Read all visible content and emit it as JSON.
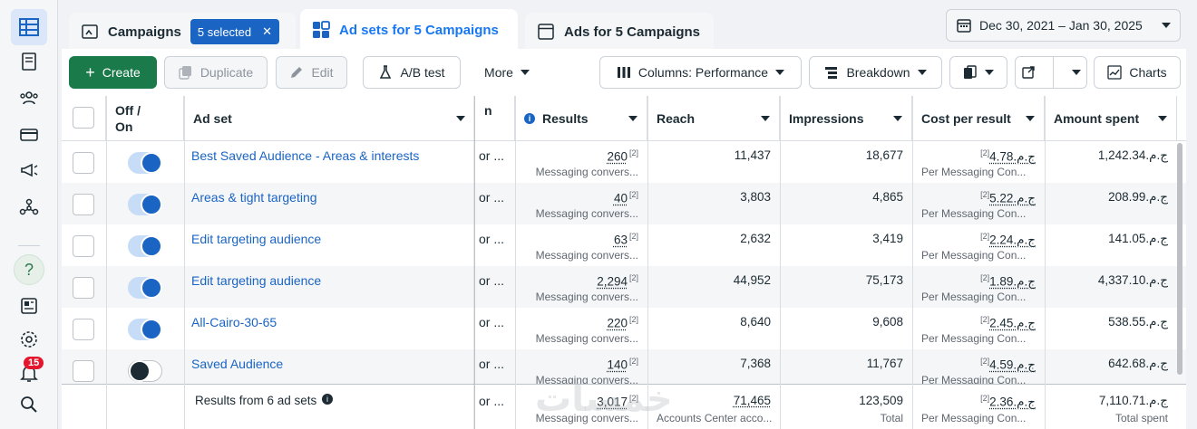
{
  "rail": {
    "notif_count": "15"
  },
  "tabs": {
    "campaigns": "Campaigns",
    "selected": "5 selected",
    "adsets": "Ad sets for 5 Campaigns",
    "ads": "Ads for 5 Campaigns"
  },
  "date_range": "Dec 30, 2021 – Jan 30, 2025",
  "toolbar": {
    "create": "Create",
    "duplicate": "Duplicate",
    "edit": "Edit",
    "ab_test": "A/B test",
    "more": "More",
    "columns": "Columns: Performance",
    "breakdown": "Breakdown",
    "charts": "Charts"
  },
  "table": {
    "headers": {
      "off_on": "Off / On",
      "ad_set": "Ad set",
      "campaign_trunc": "n",
      "results": "Results",
      "reach": "Reach",
      "impressions": "Impressions",
      "cost_per_result": "Cost per result",
      "amount_spent": "Amount spent"
    },
    "result_sub": "Messaging convers...",
    "cost_sub": "Per Messaging Con...",
    "footnote": "[2]",
    "campaign_cell": "or ...",
    "rows": [
      {
        "name": "Best Saved Audience - Areas & interests",
        "on": true,
        "results": "260",
        "reach": "11,437",
        "impressions": "18,677",
        "cost": "ج.م.4.78",
        "spent": "ج.م.1,242.34"
      },
      {
        "name": "Areas & tight targeting",
        "on": true,
        "results": "40",
        "reach": "3,803",
        "impressions": "4,865",
        "cost": "ج.م.5.22",
        "spent": "ج.م.208.99"
      },
      {
        "name": "Edit targeting audience",
        "on": true,
        "results": "63",
        "reach": "2,632",
        "impressions": "3,419",
        "cost": "ج.م.2.24",
        "spent": "ج.م.141.05"
      },
      {
        "name": "Edit targeting audience",
        "on": true,
        "results": "2,294",
        "reach": "44,952",
        "impressions": "75,173",
        "cost": "ج.م.1.89",
        "spent": "ج.م.4,337.10"
      },
      {
        "name": "All-Cairo-30-65",
        "on": true,
        "results": "220",
        "reach": "8,640",
        "impressions": "9,608",
        "cost": "ج.م.2.45",
        "spent": "ج.م.538.55"
      },
      {
        "name": "Saved Audience",
        "on": false,
        "results": "140",
        "reach": "7,368",
        "impressions": "11,767",
        "cost": "ج.م.4.59",
        "spent": "ج.م.642.68"
      }
    ],
    "footer": {
      "label": "Results from 6 ad sets",
      "results": "3,017",
      "results_sub": "Messaging convers...",
      "reach": "71,465",
      "reach_sub": "Accounts Center acco...",
      "impressions": "123,509",
      "impressions_sub": "Total",
      "cost": "ج.م.2.36",
      "cost_sub": "Per Messaging Con...",
      "spent": "ج.م.7,110.71",
      "spent_sub": "Total spent"
    }
  },
  "watermark": "خمسات"
}
